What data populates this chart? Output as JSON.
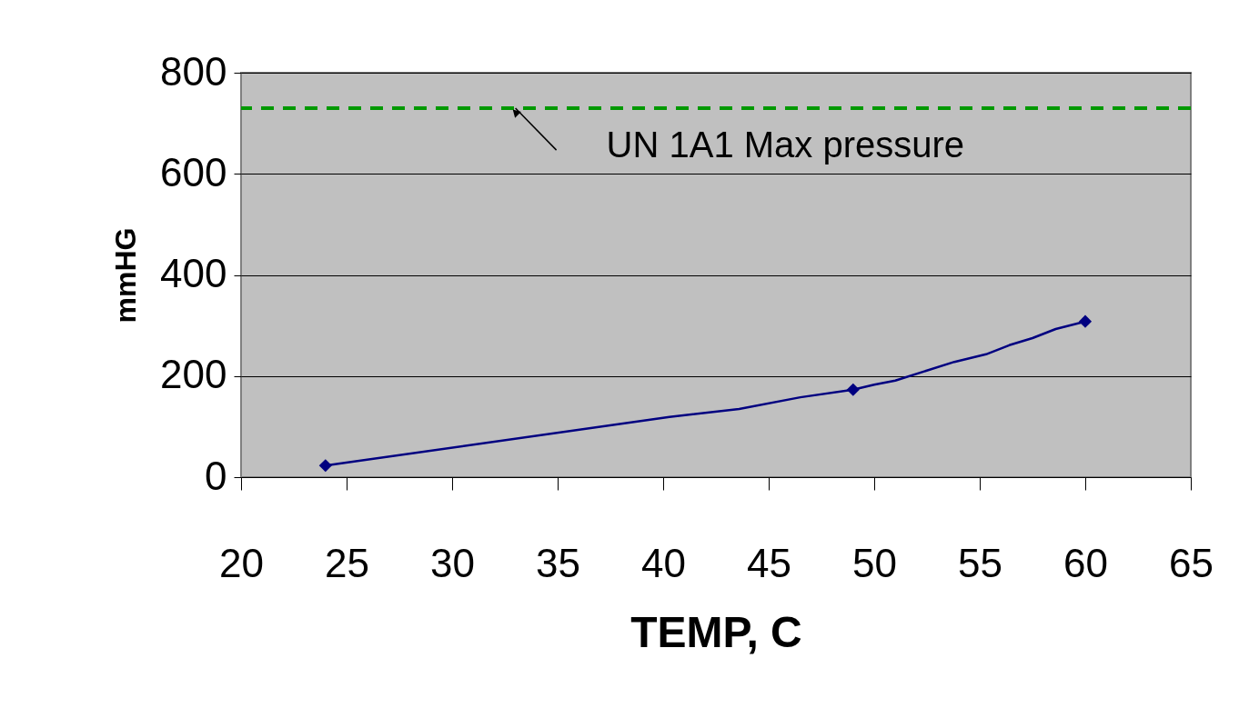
{
  "chart_data": {
    "type": "line",
    "xlabel": "TEMP, C",
    "ylabel": "mmHG",
    "xlim": [
      20,
      65
    ],
    "xticks": [
      20,
      25,
      30,
      35,
      40,
      45,
      50,
      55,
      60,
      65
    ],
    "ylim": [
      0,
      800
    ],
    "yticks": [
      0,
      200,
      400,
      600,
      800
    ],
    "grid": "y",
    "line_style": "solid",
    "series": [
      {
        "type": "line",
        "color": "#000080",
        "marker": "none",
        "x": [
          24,
          40.3,
          43.6,
          46.5,
          49,
          50,
          51,
          53.8,
          55.3,
          56.4,
          57.5,
          58.6,
          60
        ],
        "values": [
          23,
          119,
          135,
          158,
          173,
          183,
          191,
          228,
          243,
          261,
          275,
          293,
          308
        ]
      },
      {
        "type": "scatter",
        "color": "#000080",
        "marker": "diamond",
        "x": [
          24,
          49,
          60
        ],
        "values": [
          23,
          173,
          308
        ]
      }
    ],
    "ref_lines": [
      {
        "axis": "y",
        "value": 730,
        "color": "#009900",
        "line_style": "dashed"
      }
    ],
    "annotations": [
      {
        "text": "UN 1A1 Max pressure",
        "x": 33,
        "y": 730
      }
    ]
  }
}
